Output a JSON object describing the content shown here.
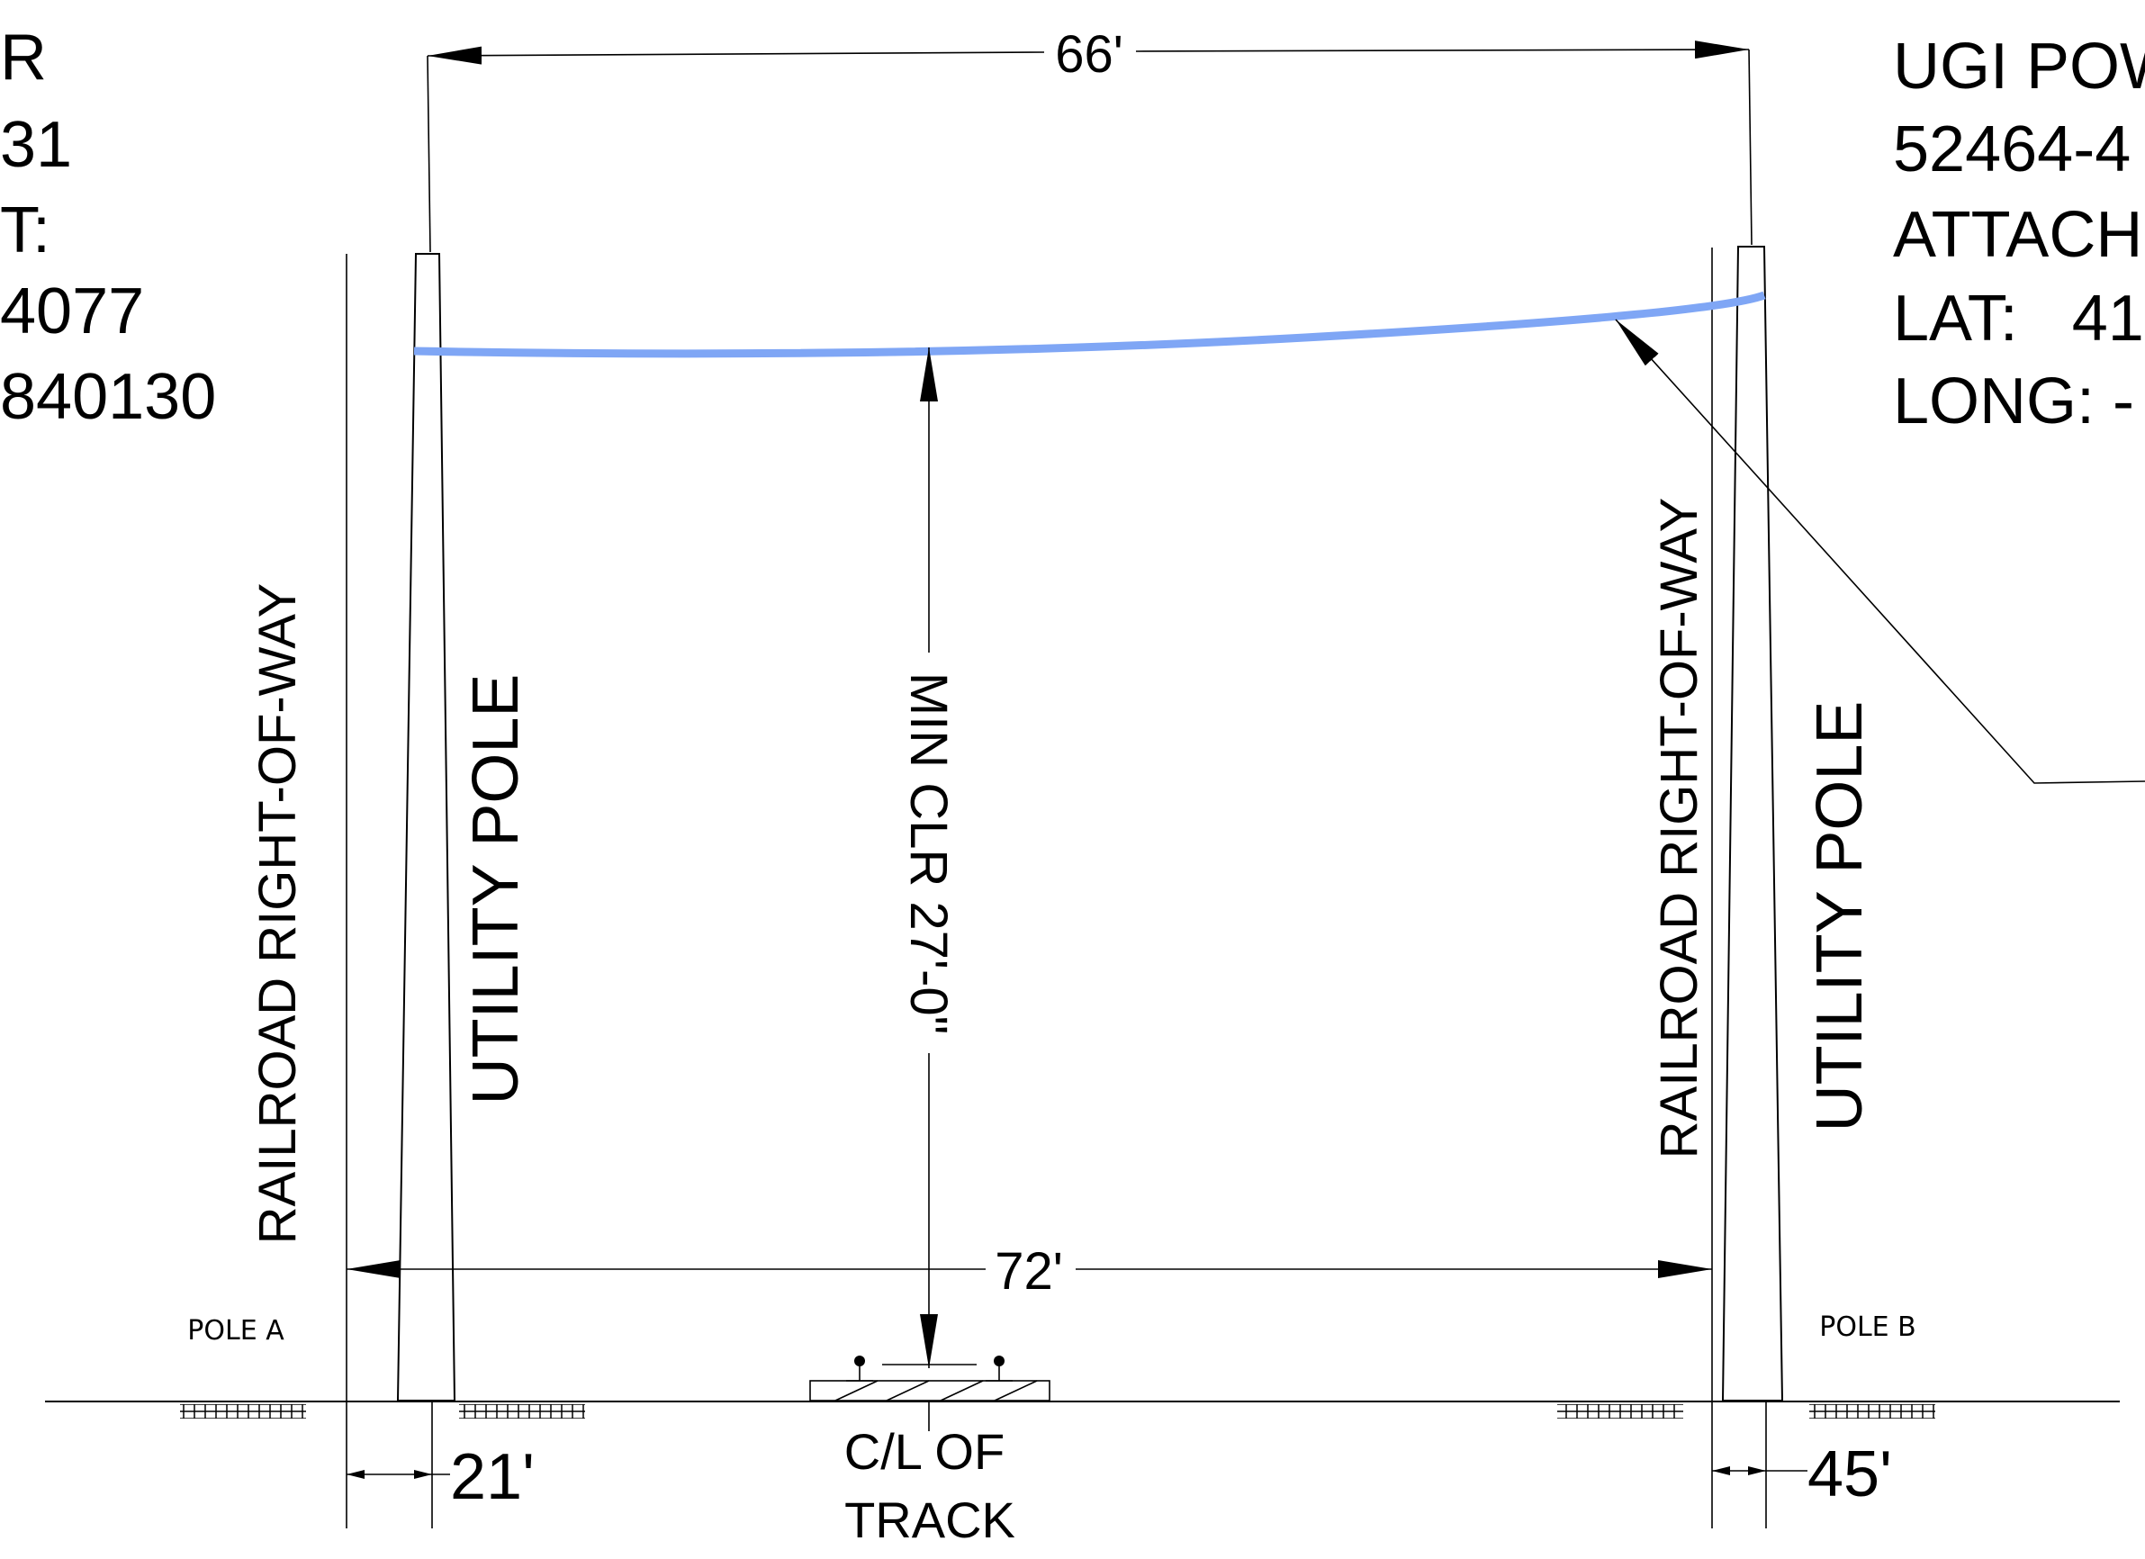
{
  "left_info": {
    "lines": [
      "R",
      "31",
      "T:",
      "4077",
      "840130"
    ]
  },
  "right_info": {
    "lines": [
      "UGI POW",
      "52464-4",
      "ATTACH",
      "LAT:   41",
      "LONG: -"
    ]
  },
  "dimensions": {
    "pole_span": "66'",
    "row_width": "72'",
    "min_clearance": "MIN CLR 27'-0\"",
    "pole_a_offset": "21'",
    "pole_b_offset": "45'"
  },
  "labels": {
    "row_left": "RAILROAD RIGHT-OF-WAY",
    "row_right": "RAILROAD RIGHT-OF-WAY",
    "utility_pole_left": "UTILITY POLE",
    "utility_pole_right": "UTILITY POLE",
    "pole_a": "POLE A",
    "pole_b": "POLE B",
    "track_line1": "C/L OF",
    "track_line2": "TRACK"
  },
  "colors": {
    "wire": "#7fa6f5",
    "ink": "#000000"
  }
}
